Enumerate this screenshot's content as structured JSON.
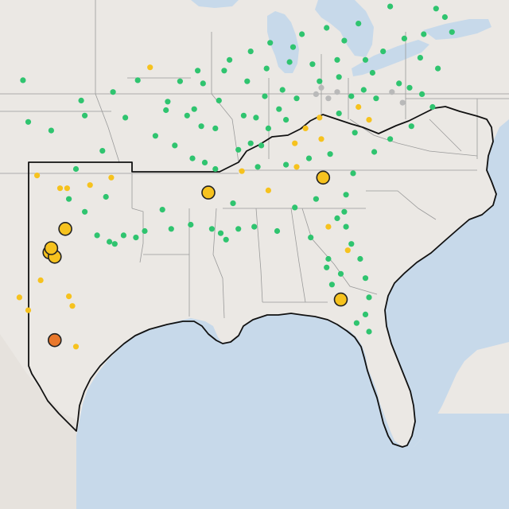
{
  "map": {
    "colors": {
      "land": "#ebe8e4",
      "water": "#c7d9ea",
      "border": "#9a9a9a",
      "region_outline": "#111111",
      "green": "#2fc46f",
      "yellow": "#f6c21e",
      "orange": "#e8772b",
      "gray": "#b9b9b9",
      "marker_stroke": "#222222"
    },
    "markers": [
      {
        "lon": -92.6,
        "lat": 37.05,
        "color": "yellow",
        "size": "small"
      },
      {
        "lon": -94.7,
        "lat": 35.9,
        "color": "green",
        "size": "small"
      },
      {
        "lon": -96.5,
        "lat": 35.5,
        "color": "green",
        "size": "small"
      },
      {
        "lon": -91.6,
        "lat": 35.45,
        "color": "green",
        "size": "small"
      },
      {
        "lon": -91.7,
        "lat": 35.05,
        "color": "green",
        "size": "small"
      },
      {
        "lon": -93.3,
        "lat": 36.45,
        "color": "green",
        "size": "small"
      },
      {
        "lon": -99.8,
        "lat": 36.45,
        "color": "green",
        "size": "small"
      },
      {
        "lon": -96.3,
        "lat": 34.8,
        "color": "green",
        "size": "small"
      },
      {
        "lon": -94.0,
        "lat": 34.7,
        "color": "green",
        "size": "small"
      },
      {
        "lon": -92.3,
        "lat": 33.85,
        "color": "green",
        "size": "small"
      },
      {
        "lon": -95.3,
        "lat": 33.15,
        "color": "green",
        "size": "small"
      },
      {
        "lon": -94.8,
        "lat": 31.9,
        "color": "yellow",
        "size": "small"
      },
      {
        "lon": -96.8,
        "lat": 32.3,
        "color": "green",
        "size": "small"
      },
      {
        "lon": -96.0,
        "lat": 31.55,
        "color": "yellow",
        "size": "small"
      },
      {
        "lon": -97.3,
        "lat": 31.4,
        "color": "yellow",
        "size": "small"
      },
      {
        "lon": -95.1,
        "lat": 31.0,
        "color": "green",
        "size": "small"
      },
      {
        "lon": -96.3,
        "lat": 30.3,
        "color": "green",
        "size": "small"
      },
      {
        "lon": -97.7,
        "lat": 31.4,
        "color": "yellow",
        "size": "small"
      },
      {
        "lon": -97.2,
        "lat": 30.9,
        "color": "green",
        "size": "small"
      },
      {
        "lon": -97.4,
        "lat": 29.5,
        "color": "yellow",
        "size": "large"
      },
      {
        "lon": -98.3,
        "lat": 28.4,
        "color": "yellow",
        "size": "large"
      },
      {
        "lon": -98.0,
        "lat": 28.2,
        "color": "yellow",
        "size": "large"
      },
      {
        "lon": -98.2,
        "lat": 28.6,
        "color": "yellow",
        "size": "large"
      },
      {
        "lon": -97.2,
        "lat": 26.35,
        "color": "yellow",
        "size": "small"
      },
      {
        "lon": -97.0,
        "lat": 25.9,
        "color": "yellow",
        "size": "small"
      },
      {
        "lon": -99.5,
        "lat": 25.7,
        "color": "yellow",
        "size": "small"
      },
      {
        "lon": -98.0,
        "lat": 24.3,
        "color": "orange",
        "size": "large"
      },
      {
        "lon": -96.8,
        "lat": 24.0,
        "color": "yellow",
        "size": "small"
      },
      {
        "lon": -95.6,
        "lat": 29.2,
        "color": "green",
        "size": "small"
      },
      {
        "lon": -94.9,
        "lat": 28.9,
        "color": "green",
        "size": "small"
      },
      {
        "lon": -94.6,
        "lat": 28.8,
        "color": "green",
        "size": "small"
      },
      {
        "lon": -94.1,
        "lat": 29.2,
        "color": "green",
        "size": "small"
      },
      {
        "lon": -93.4,
        "lat": 29.1,
        "color": "green",
        "size": "small"
      },
      {
        "lon": -92.9,
        "lat": 29.4,
        "color": "green",
        "size": "small"
      },
      {
        "lon": -91.4,
        "lat": 29.5,
        "color": "green",
        "size": "small"
      },
      {
        "lon": -90.3,
        "lat": 29.7,
        "color": "green",
        "size": "small"
      },
      {
        "lon": -89.1,
        "lat": 29.5,
        "color": "green",
        "size": "small"
      },
      {
        "lon": -88.6,
        "lat": 29.3,
        "color": "green",
        "size": "small"
      },
      {
        "lon": -88.3,
        "lat": 29.0,
        "color": "green",
        "size": "small"
      },
      {
        "lon": -87.6,
        "lat": 29.5,
        "color": "green",
        "size": "small"
      },
      {
        "lon": -86.7,
        "lat": 29.6,
        "color": "green",
        "size": "small"
      },
      {
        "lon": -85.4,
        "lat": 29.4,
        "color": "green",
        "size": "small"
      },
      {
        "lon": -83.5,
        "lat": 29.1,
        "color": "green",
        "size": "small"
      },
      {
        "lon": -91.9,
        "lat": 30.4,
        "color": "green",
        "size": "small"
      },
      {
        "lon": -89.3,
        "lat": 31.2,
        "color": "yellow",
        "size": "large"
      },
      {
        "lon": -89.5,
        "lat": 32.6,
        "color": "green",
        "size": "small"
      },
      {
        "lon": -90.2,
        "lat": 32.8,
        "color": "green",
        "size": "small"
      },
      {
        "lon": -88.9,
        "lat": 34.2,
        "color": "green",
        "size": "small"
      },
      {
        "lon": -90.1,
        "lat": 35.1,
        "color": "green",
        "size": "small"
      },
      {
        "lon": -89.6,
        "lat": 36.3,
        "color": "green",
        "size": "small"
      },
      {
        "lon": -88.4,
        "lat": 36.9,
        "color": "green",
        "size": "small"
      },
      {
        "lon": -87.1,
        "lat": 36.4,
        "color": "green",
        "size": "small"
      },
      {
        "lon": -86.1,
        "lat": 35.7,
        "color": "green",
        "size": "small"
      },
      {
        "lon": -85.1,
        "lat": 36.0,
        "color": "green",
        "size": "small"
      },
      {
        "lon": -84.3,
        "lat": 35.6,
        "color": "green",
        "size": "small"
      },
      {
        "lon": -83.0,
        "lat": 36.4,
        "color": "green",
        "size": "small"
      },
      {
        "lon": -81.9,
        "lat": 36.6,
        "color": "green",
        "size": "small"
      },
      {
        "lon": -80.0,
        "lat": 36.8,
        "color": "green",
        "size": "small"
      },
      {
        "lon": -78.5,
        "lat": 36.3,
        "color": "green",
        "size": "small"
      },
      {
        "lon": -77.2,
        "lat": 35.8,
        "color": "green",
        "size": "small"
      },
      {
        "lon": -76.6,
        "lat": 35.2,
        "color": "green",
        "size": "small"
      },
      {
        "lon": -77.8,
        "lat": 34.3,
        "color": "green",
        "size": "small"
      },
      {
        "lon": -79.0,
        "lat": 33.7,
        "color": "green",
        "size": "small"
      },
      {
        "lon": -79.9,
        "lat": 33.1,
        "color": "green",
        "size": "small"
      },
      {
        "lon": -81.1,
        "lat": 32.1,
        "color": "green",
        "size": "small"
      },
      {
        "lon": -81.5,
        "lat": 31.1,
        "color": "green",
        "size": "small"
      },
      {
        "lon": -81.6,
        "lat": 30.3,
        "color": "green",
        "size": "small"
      },
      {
        "lon": -81.5,
        "lat": 29.6,
        "color": "green",
        "size": "small"
      },
      {
        "lon": -81.2,
        "lat": 28.8,
        "color": "green",
        "size": "small"
      },
      {
        "lon": -80.7,
        "lat": 28.1,
        "color": "green",
        "size": "small"
      },
      {
        "lon": -80.4,
        "lat": 27.2,
        "color": "green",
        "size": "small"
      },
      {
        "lon": -80.2,
        "lat": 26.3,
        "color": "green",
        "size": "small"
      },
      {
        "lon": -80.4,
        "lat": 25.5,
        "color": "green",
        "size": "small"
      },
      {
        "lon": -81.8,
        "lat": 26.2,
        "color": "yellow",
        "size": "large"
      },
      {
        "lon": -82.3,
        "lat": 26.9,
        "color": "green",
        "size": "small"
      },
      {
        "lon": -82.6,
        "lat": 27.7,
        "color": "green",
        "size": "small"
      },
      {
        "lon": -82.5,
        "lat": 28.1,
        "color": "green",
        "size": "small"
      },
      {
        "lon": -81.4,
        "lat": 28.5,
        "color": "yellow",
        "size": "small"
      },
      {
        "lon": -82.5,
        "lat": 29.6,
        "color": "yellow",
        "size": "small"
      },
      {
        "lon": -84.4,
        "lat": 30.5,
        "color": "green",
        "size": "small"
      },
      {
        "lon": -82.8,
        "lat": 31.9,
        "color": "yellow",
        "size": "large"
      },
      {
        "lon": -84.3,
        "lat": 32.4,
        "color": "yellow",
        "size": "small"
      },
      {
        "lon": -83.6,
        "lat": 32.8,
        "color": "green",
        "size": "small"
      },
      {
        "lon": -82.9,
        "lat": 33.7,
        "color": "yellow",
        "size": "small"
      },
      {
        "lon": -83.8,
        "lat": 34.2,
        "color": "yellow",
        "size": "small"
      },
      {
        "lon": -83.0,
        "lat": 34.7,
        "color": "yellow",
        "size": "small"
      },
      {
        "lon": -84.4,
        "lat": 33.5,
        "color": "yellow",
        "size": "small"
      },
      {
        "lon": -84.9,
        "lat": 34.6,
        "color": "green",
        "size": "small"
      },
      {
        "lon": -85.9,
        "lat": 34.2,
        "color": "green",
        "size": "small"
      },
      {
        "lon": -86.3,
        "lat": 33.4,
        "color": "green",
        "size": "small"
      },
      {
        "lon": -86.9,
        "lat": 33.5,
        "color": "green",
        "size": "small"
      },
      {
        "lon": -87.6,
        "lat": 33.2,
        "color": "green",
        "size": "small"
      },
      {
        "lon": -86.5,
        "lat": 32.4,
        "color": "green",
        "size": "small"
      },
      {
        "lon": -85.9,
        "lat": 31.3,
        "color": "yellow",
        "size": "small"
      },
      {
        "lon": -87.9,
        "lat": 30.7,
        "color": "green",
        "size": "small"
      },
      {
        "lon": -82.4,
        "lat": 33.0,
        "color": "green",
        "size": "small"
      },
      {
        "lon": -81.0,
        "lat": 34.0,
        "color": "green",
        "size": "small"
      },
      {
        "lon": -81.9,
        "lat": 34.9,
        "color": "green",
        "size": "small"
      },
      {
        "lon": -80.8,
        "lat": 35.2,
        "color": "yellow",
        "size": "small"
      },
      {
        "lon": -80.2,
        "lat": 34.6,
        "color": "yellow",
        "size": "small"
      },
      {
        "lon": -79.8,
        "lat": 35.6,
        "color": "green",
        "size": "small"
      },
      {
        "lon": -80.5,
        "lat": 36.0,
        "color": "green",
        "size": "small"
      },
      {
        "lon": -81.2,
        "lat": 35.7,
        "color": "green",
        "size": "small"
      },
      {
        "lon": -82.5,
        "lat": 35.6,
        "color": "gray",
        "size": "small"
      },
      {
        "lon": -83.2,
        "lat": 35.8,
        "color": "gray",
        "size": "small"
      },
      {
        "lon": -82.9,
        "lat": 36.1,
        "color": "gray",
        "size": "small"
      },
      {
        "lon": -82.0,
        "lat": 35.9,
        "color": "gray",
        "size": "small"
      },
      {
        "lon": -78.9,
        "lat": 35.9,
        "color": "gray",
        "size": "small"
      },
      {
        "lon": -78.3,
        "lat": 35.4,
        "color": "gray",
        "size": "small"
      },
      {
        "lon": -77.9,
        "lat": 36.1,
        "color": "green",
        "size": "small"
      },
      {
        "lon": -77.3,
        "lat": 37.5,
        "color": "green",
        "size": "small"
      },
      {
        "lon": -76.3,
        "lat": 37.0,
        "color": "green",
        "size": "small"
      },
      {
        "lon": -78.2,
        "lat": 38.4,
        "color": "green",
        "size": "small"
      },
      {
        "lon": -79.4,
        "lat": 37.8,
        "color": "green",
        "size": "small"
      },
      {
        "lon": -80.4,
        "lat": 37.4,
        "color": "green",
        "size": "small"
      },
      {
        "lon": -81.6,
        "lat": 38.3,
        "color": "green",
        "size": "small"
      },
      {
        "lon": -80.8,
        "lat": 39.1,
        "color": "green",
        "size": "small"
      },
      {
        "lon": -82.6,
        "lat": 38.9,
        "color": "green",
        "size": "small"
      },
      {
        "lon": -84.0,
        "lat": 38.6,
        "color": "green",
        "size": "small"
      },
      {
        "lon": -84.5,
        "lat": 38.0,
        "color": "green",
        "size": "small"
      },
      {
        "lon": -85.8,
        "lat": 38.2,
        "color": "green",
        "size": "small"
      },
      {
        "lon": -86.9,
        "lat": 37.8,
        "color": "green",
        "size": "small"
      },
      {
        "lon": -88.1,
        "lat": 37.4,
        "color": "green",
        "size": "small"
      },
      {
        "lon": -86.0,
        "lat": 37.0,
        "color": "green",
        "size": "small"
      },
      {
        "lon": -84.7,
        "lat": 37.3,
        "color": "green",
        "size": "small"
      },
      {
        "lon": -83.4,
        "lat": 37.2,
        "color": "green",
        "size": "small"
      },
      {
        "lon": -82.0,
        "lat": 37.4,
        "color": "green",
        "size": "small"
      },
      {
        "lon": -79.0,
        "lat": 39.9,
        "color": "green",
        "size": "small"
      },
      {
        "lon": -76.4,
        "lat": 39.8,
        "color": "green",
        "size": "small"
      },
      {
        "lon": -75.9,
        "lat": 39.4,
        "color": "green",
        "size": "small"
      },
      {
        "lon": -75.5,
        "lat": 38.7,
        "color": "green",
        "size": "small"
      },
      {
        "lon": -77.1,
        "lat": 38.6,
        "color": "green",
        "size": "small"
      },
      {
        "lon": -89.9,
        "lat": 36.9,
        "color": "green",
        "size": "small"
      },
      {
        "lon": -90.9,
        "lat": 36.4,
        "color": "green",
        "size": "small"
      },
      {
        "lon": -89.7,
        "lat": 34.3,
        "color": "green",
        "size": "small"
      },
      {
        "lon": -91.2,
        "lat": 33.4,
        "color": "green",
        "size": "small"
      },
      {
        "lon": -90.5,
        "lat": 34.8,
        "color": "green",
        "size": "small"
      },
      {
        "lon": -86.6,
        "lat": 34.7,
        "color": "green",
        "size": "small"
      },
      {
        "lon": -87.3,
        "lat": 34.8,
        "color": "green",
        "size": "small"
      },
      {
        "lon": -88.7,
        "lat": 35.5,
        "color": "green",
        "size": "small"
      },
      {
        "lon": -85.3,
        "lat": 35.1,
        "color": "green",
        "size": "small"
      },
      {
        "lon": -88.9,
        "lat": 32.3,
        "color": "green",
        "size": "small"
      },
      {
        "lon": -87.4,
        "lat": 32.2,
        "color": "yellow",
        "size": "small"
      },
      {
        "lon": -84.9,
        "lat": 32.5,
        "color": "green",
        "size": "small"
      },
      {
        "lon": -83.2,
        "lat": 30.9,
        "color": "green",
        "size": "small"
      },
      {
        "lon": -82.0,
        "lat": 30.0,
        "color": "green",
        "size": "small"
      },
      {
        "lon": -81.8,
        "lat": 27.4,
        "color": "green",
        "size": "small"
      },
      {
        "lon": -80.9,
        "lat": 25.1,
        "color": "green",
        "size": "small"
      },
      {
        "lon": -80.2,
        "lat": 24.7,
        "color": "green",
        "size": "small"
      },
      {
        "lon": -99.0,
        "lat": 32.0,
        "color": "yellow",
        "size": "small"
      },
      {
        "lon": -98.8,
        "lat": 27.1,
        "color": "yellow",
        "size": "small"
      },
      {
        "lon": -100.0,
        "lat": 26.3,
        "color": "yellow",
        "size": "small"
      },
      {
        "lon": -98.2,
        "lat": 34.1,
        "color": "green",
        "size": "small"
      },
      {
        "lon": -99.5,
        "lat": 34.5,
        "color": "green",
        "size": "small"
      }
    ]
  }
}
